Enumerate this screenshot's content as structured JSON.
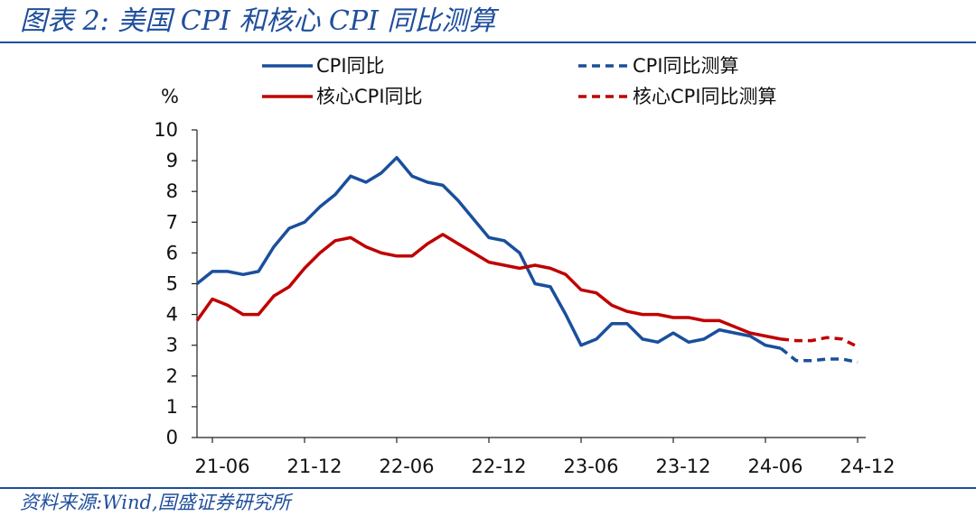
{
  "header": {
    "title": "图表 2:  美国 CPI 和核心 CPI 同比测算"
  },
  "footer": {
    "source": "资料来源:Wind,国盛证券研究所"
  },
  "colors": {
    "cpi": "#1a4f9c",
    "core": "#c00000",
    "frame": "#1f4e9c"
  },
  "chart_data": {
    "type": "line",
    "title": "美国 CPI 和核心 CPI 同比测算",
    "ylabel": "%",
    "ylim": [
      0,
      10
    ],
    "y_ticks": [
      0,
      1,
      2,
      3,
      4,
      5,
      6,
      7,
      8,
      9,
      10
    ],
    "x_tick_labels": [
      "21-06",
      "21-12",
      "22-06",
      "22-12",
      "23-06",
      "23-12",
      "24-06",
      "24-12"
    ],
    "x": [
      "21-05",
      "21-06",
      "21-07",
      "21-08",
      "21-09",
      "21-10",
      "21-11",
      "21-12",
      "22-01",
      "22-02",
      "22-03",
      "22-04",
      "22-05",
      "22-06",
      "22-07",
      "22-08",
      "22-09",
      "22-10",
      "22-11",
      "22-12",
      "23-01",
      "23-02",
      "23-03",
      "23-04",
      "23-05",
      "23-06",
      "23-07",
      "23-08",
      "23-09",
      "23-10",
      "23-11",
      "23-12",
      "24-01",
      "24-02",
      "24-03",
      "24-04",
      "24-05",
      "24-06",
      "24-07",
      "24-08",
      "24-09",
      "24-10",
      "24-11",
      "24-12"
    ],
    "legend": {
      "placement": "top",
      "columns": 2
    },
    "grid": false,
    "series": [
      {
        "name": "CPI同比",
        "color": "#1a4f9c",
        "style": "solid",
        "values": [
          5.0,
          5.4,
          5.4,
          5.3,
          5.4,
          6.2,
          6.8,
          7.0,
          7.5,
          7.9,
          8.5,
          8.3,
          8.6,
          9.1,
          8.5,
          8.3,
          8.2,
          7.7,
          7.1,
          6.5,
          6.4,
          6.0,
          5.0,
          4.9,
          4.0,
          3.0,
          3.2,
          3.7,
          3.7,
          3.2,
          3.1,
          3.4,
          3.1,
          3.2,
          3.5,
          3.4,
          3.3,
          3.0,
          2.9,
          null,
          null,
          null,
          null,
          null
        ]
      },
      {
        "name": "CPI同比测算",
        "color": "#1a4f9c",
        "style": "dashed",
        "values": [
          null,
          null,
          null,
          null,
          null,
          null,
          null,
          null,
          null,
          null,
          null,
          null,
          null,
          null,
          null,
          null,
          null,
          null,
          null,
          null,
          null,
          null,
          null,
          null,
          null,
          null,
          null,
          null,
          null,
          null,
          null,
          null,
          null,
          null,
          null,
          null,
          null,
          null,
          2.9,
          2.5,
          2.5,
          2.55,
          2.55,
          2.45
        ]
      },
      {
        "name": "核心CPI同比",
        "color": "#c00000",
        "style": "solid",
        "values": [
          3.8,
          4.5,
          4.3,
          4.0,
          4.0,
          4.6,
          4.9,
          5.5,
          6.0,
          6.4,
          6.5,
          6.2,
          6.0,
          5.9,
          5.9,
          6.3,
          6.6,
          6.3,
          6.0,
          5.7,
          5.6,
          5.5,
          5.6,
          5.5,
          5.3,
          4.8,
          4.7,
          4.3,
          4.1,
          4.0,
          4.0,
          3.9,
          3.9,
          3.8,
          3.8,
          3.6,
          3.4,
          3.3,
          3.2,
          null,
          null,
          null,
          null,
          null
        ]
      },
      {
        "name": "核心CPI同比测算",
        "color": "#c00000",
        "style": "dashed",
        "values": [
          null,
          null,
          null,
          null,
          null,
          null,
          null,
          null,
          null,
          null,
          null,
          null,
          null,
          null,
          null,
          null,
          null,
          null,
          null,
          null,
          null,
          null,
          null,
          null,
          null,
          null,
          null,
          null,
          null,
          null,
          null,
          null,
          null,
          null,
          null,
          null,
          null,
          null,
          3.2,
          3.15,
          3.15,
          3.25,
          3.2,
          2.95
        ]
      }
    ]
  }
}
